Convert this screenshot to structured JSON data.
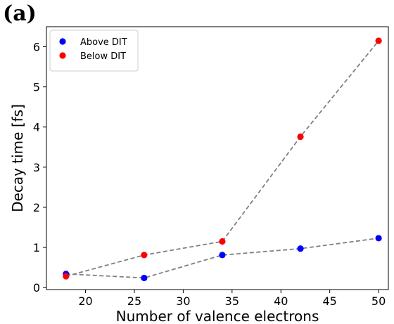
{
  "panel_label": "(a)",
  "chart_data": {
    "type": "scatter",
    "title": "",
    "xlabel": "Number of valence electrons",
    "ylabel": "Decay time [fs]",
    "xlim": [
      16,
      51
    ],
    "ylim": [
      -0.05,
      6.5
    ],
    "xticks": [
      20,
      25,
      30,
      35,
      40,
      45,
      50
    ],
    "yticks": [
      0,
      1,
      2,
      3,
      4,
      5,
      6
    ],
    "grid": false,
    "legend_position": "top-left",
    "connector_style": "dashed-gray",
    "series": [
      {
        "name": "Above DIT",
        "color": "#0000ff",
        "x": [
          18,
          26,
          34,
          42,
          50
        ],
        "y": [
          0.34,
          0.24,
          0.81,
          0.97,
          1.23
        ]
      },
      {
        "name": "Below DIT",
        "color": "#ff0000",
        "x": [
          18,
          26,
          34,
          42,
          50
        ],
        "y": [
          0.28,
          0.81,
          1.15,
          3.76,
          6.15
        ]
      }
    ]
  }
}
